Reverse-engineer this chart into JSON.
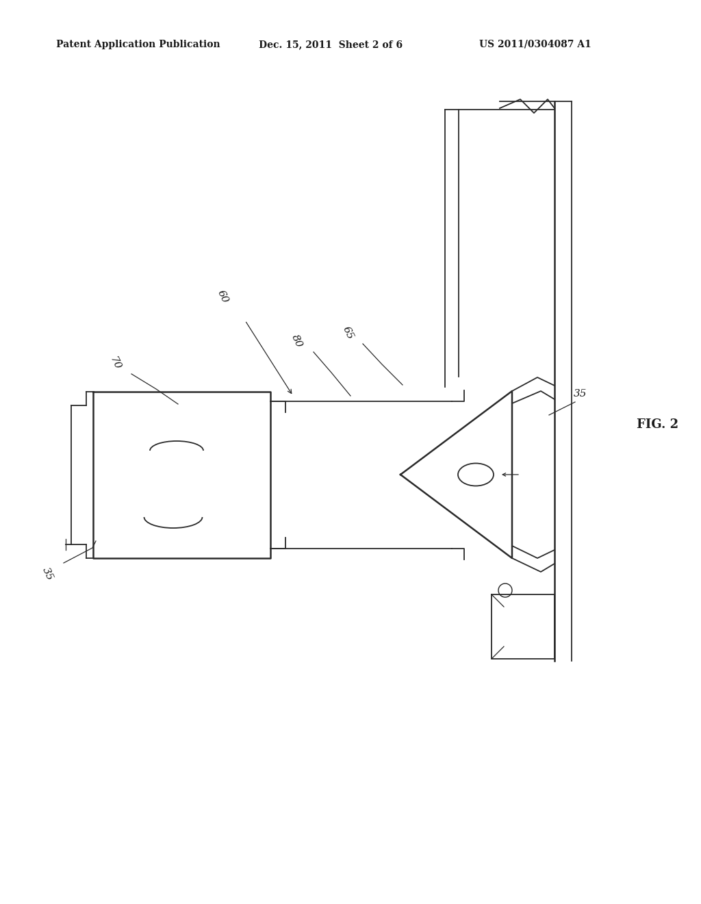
{
  "background_color": "#ffffff",
  "header_left": "Patent Application Publication",
  "header_mid": "Dec. 15, 2011  Sheet 2 of 6",
  "header_right": "US 2011/0304087 A1",
  "fig_label": "FIG. 2",
  "line_color": "#2a2a2a",
  "text_color": "#1a1a1a",
  "header_fontsize": 10,
  "label_fontsize": 11,
  "fig_fontsize": 13
}
